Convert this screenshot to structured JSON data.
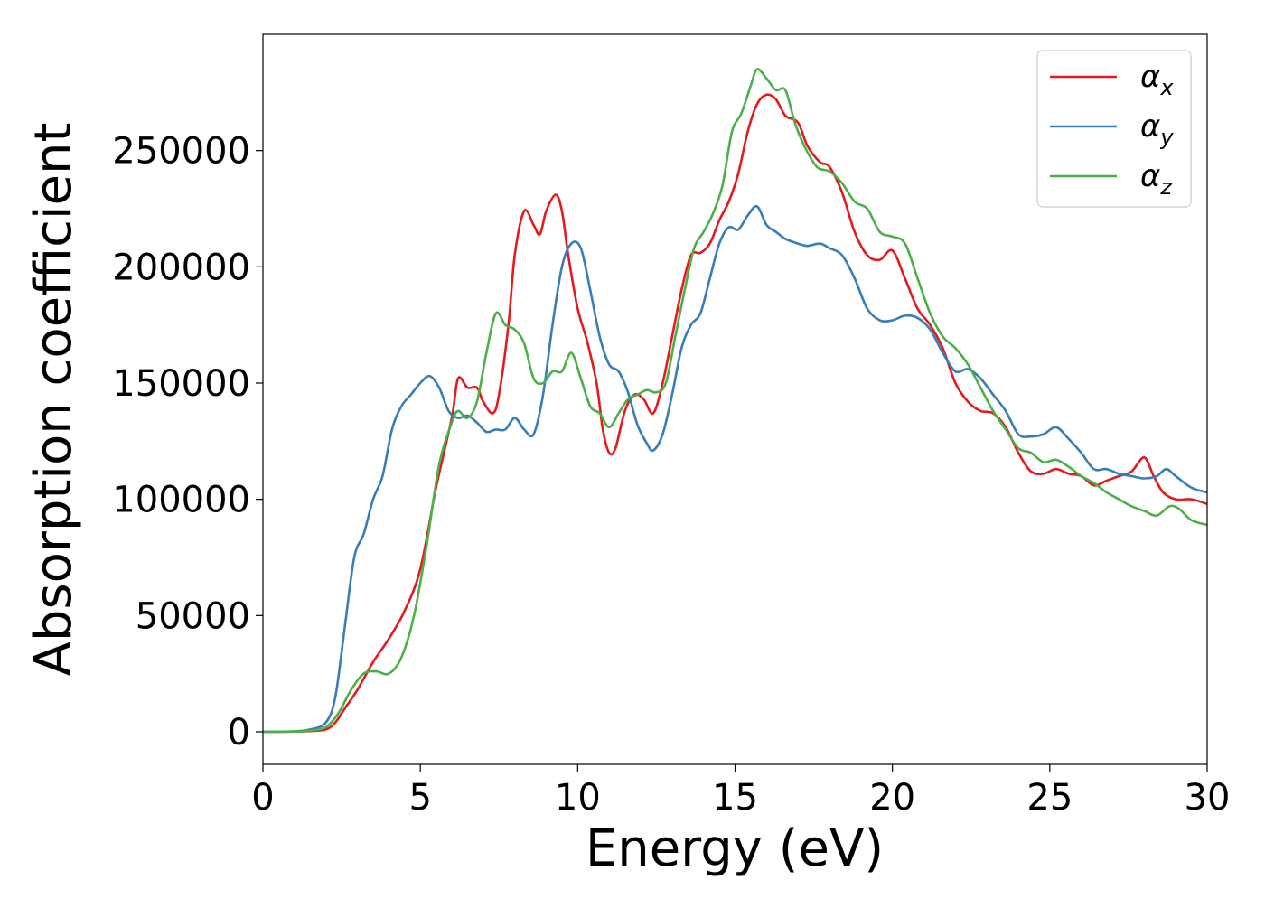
{
  "chart_data": {
    "type": "line",
    "title": "",
    "xlabel": "Energy (eV)",
    "ylabel": "Absorption coefficient",
    "xlim": [
      0,
      30
    ],
    "ylim": [
      -14000,
      300000
    ],
    "xticks": [
      0,
      5,
      10,
      15,
      20,
      25,
      30
    ],
    "yticks": [
      0,
      50000,
      100000,
      150000,
      200000,
      250000
    ],
    "grid": false,
    "legend_position": "top-right",
    "series": [
      {
        "name": "α_x",
        "label_base": "α",
        "label_sub": "x",
        "color": "#e41a1c",
        "points": [
          [
            0,
            0
          ],
          [
            1,
            100
          ],
          [
            1.5,
            300
          ],
          [
            2.0,
            1000
          ],
          [
            2.3,
            4000
          ],
          [
            2.6,
            10000
          ],
          [
            3.0,
            18000
          ],
          [
            3.5,
            30000
          ],
          [
            4.0,
            40000
          ],
          [
            4.5,
            52000
          ],
          [
            5.0,
            70000
          ],
          [
            5.5,
            105000
          ],
          [
            6.0,
            135000
          ],
          [
            6.2,
            152000
          ],
          [
            6.5,
            148000
          ],
          [
            6.8,
            148000
          ],
          [
            7.0,
            142000
          ],
          [
            7.3,
            137000
          ],
          [
            7.5,
            145000
          ],
          [
            7.8,
            175000
          ],
          [
            8.0,
            205000
          ],
          [
            8.3,
            224000
          ],
          [
            8.6,
            218000
          ],
          [
            8.8,
            214000
          ],
          [
            9.0,
            224000
          ],
          [
            9.3,
            231000
          ],
          [
            9.5,
            224000
          ],
          [
            9.7,
            205000
          ],
          [
            10.0,
            182000
          ],
          [
            10.3,
            168000
          ],
          [
            10.6,
            150000
          ],
          [
            10.8,
            130000
          ],
          [
            11.0,
            120000
          ],
          [
            11.2,
            122000
          ],
          [
            11.5,
            138000
          ],
          [
            11.8,
            145000
          ],
          [
            12.1,
            143000
          ],
          [
            12.4,
            137000
          ],
          [
            12.7,
            150000
          ],
          [
            13.0,
            170000
          ],
          [
            13.3,
            190000
          ],
          [
            13.6,
            205000
          ],
          [
            13.9,
            206000
          ],
          [
            14.2,
            210000
          ],
          [
            14.5,
            220000
          ],
          [
            14.8,
            228000
          ],
          [
            15.1,
            240000
          ],
          [
            15.4,
            258000
          ],
          [
            15.7,
            270000
          ],
          [
            16.0,
            274000
          ],
          [
            16.3,
            272000
          ],
          [
            16.6,
            265000
          ],
          [
            17.0,
            262000
          ],
          [
            17.3,
            252000
          ],
          [
            17.7,
            245000
          ],
          [
            18.0,
            243000
          ],
          [
            18.4,
            232000
          ],
          [
            18.8,
            215000
          ],
          [
            19.2,
            205000
          ],
          [
            19.6,
            203000
          ],
          [
            20.0,
            207000
          ],
          [
            20.4,
            195000
          ],
          [
            20.8,
            182000
          ],
          [
            21.2,
            175000
          ],
          [
            21.6,
            165000
          ],
          [
            22.0,
            150000
          ],
          [
            22.4,
            142000
          ],
          [
            22.8,
            138000
          ],
          [
            23.2,
            137000
          ],
          [
            23.6,
            131000
          ],
          [
            24.0,
            120000
          ],
          [
            24.4,
            112000
          ],
          [
            24.8,
            111000
          ],
          [
            25.2,
            113000
          ],
          [
            25.6,
            111000
          ],
          [
            26.0,
            110000
          ],
          [
            26.4,
            106000
          ],
          [
            26.8,
            108000
          ],
          [
            27.2,
            110000
          ],
          [
            27.6,
            112000
          ],
          [
            28.0,
            118000
          ],
          [
            28.3,
            110000
          ],
          [
            28.6,
            103000
          ],
          [
            29.0,
            100000
          ],
          [
            29.5,
            100000
          ],
          [
            30.0,
            98000
          ]
        ]
      },
      {
        "name": "α_y",
        "label_base": "α",
        "label_sub": "y",
        "color": "#377eb8",
        "points": [
          [
            0,
            0
          ],
          [
            1,
            200
          ],
          [
            1.5,
            1000
          ],
          [
            2.0,
            4000
          ],
          [
            2.3,
            15000
          ],
          [
            2.6,
            45000
          ],
          [
            2.9,
            75000
          ],
          [
            3.2,
            85000
          ],
          [
            3.5,
            100000
          ],
          [
            3.8,
            110000
          ],
          [
            4.1,
            130000
          ],
          [
            4.4,
            140000
          ],
          [
            4.7,
            145000
          ],
          [
            5.0,
            150000
          ],
          [
            5.3,
            153000
          ],
          [
            5.6,
            148000
          ],
          [
            5.9,
            138000
          ],
          [
            6.2,
            135000
          ],
          [
            6.5,
            136000
          ],
          [
            6.8,
            133000
          ],
          [
            7.1,
            129000
          ],
          [
            7.4,
            130000
          ],
          [
            7.7,
            130000
          ],
          [
            8.0,
            135000
          ],
          [
            8.3,
            130000
          ],
          [
            8.6,
            128000
          ],
          [
            8.9,
            145000
          ],
          [
            9.2,
            175000
          ],
          [
            9.5,
            200000
          ],
          [
            9.8,
            210000
          ],
          [
            10.1,
            208000
          ],
          [
            10.4,
            190000
          ],
          [
            10.7,
            170000
          ],
          [
            11.0,
            158000
          ],
          [
            11.3,
            155000
          ],
          [
            11.6,
            146000
          ],
          [
            11.9,
            132000
          ],
          [
            12.2,
            124000
          ],
          [
            12.4,
            121000
          ],
          [
            12.7,
            128000
          ],
          [
            13.0,
            145000
          ],
          [
            13.3,
            165000
          ],
          [
            13.6,
            175000
          ],
          [
            13.9,
            180000
          ],
          [
            14.2,
            195000
          ],
          [
            14.5,
            210000
          ],
          [
            14.8,
            217000
          ],
          [
            15.1,
            216000
          ],
          [
            15.4,
            222000
          ],
          [
            15.7,
            226000
          ],
          [
            16.0,
            218000
          ],
          [
            16.3,
            215000
          ],
          [
            16.6,
            212000
          ],
          [
            17.0,
            210000
          ],
          [
            17.3,
            209000
          ],
          [
            17.7,
            210000
          ],
          [
            18.0,
            208000
          ],
          [
            18.4,
            205000
          ],
          [
            18.8,
            195000
          ],
          [
            19.2,
            182000
          ],
          [
            19.6,
            177000
          ],
          [
            20.0,
            177000
          ],
          [
            20.4,
            179000
          ],
          [
            20.8,
            178000
          ],
          [
            21.2,
            173000
          ],
          [
            21.6,
            163000
          ],
          [
            22.0,
            155000
          ],
          [
            22.4,
            156000
          ],
          [
            22.8,
            152000
          ],
          [
            23.2,
            145000
          ],
          [
            23.6,
            138000
          ],
          [
            24.0,
            128000
          ],
          [
            24.4,
            127000
          ],
          [
            24.8,
            128000
          ],
          [
            25.2,
            131000
          ],
          [
            25.6,
            126000
          ],
          [
            26.0,
            120000
          ],
          [
            26.4,
            113000
          ],
          [
            26.8,
            113000
          ],
          [
            27.2,
            111000
          ],
          [
            27.6,
            110000
          ],
          [
            28.0,
            109000
          ],
          [
            28.4,
            110000
          ],
          [
            28.7,
            113000
          ],
          [
            29.0,
            110000
          ],
          [
            29.5,
            105000
          ],
          [
            30.0,
            103000
          ]
        ]
      },
      {
        "name": "α_z",
        "label_base": "α",
        "label_sub": "z",
        "color": "#4daf4a",
        "points": [
          [
            0,
            0
          ],
          [
            1,
            100
          ],
          [
            1.5,
            500
          ],
          [
            2.0,
            2000
          ],
          [
            2.4,
            8000
          ],
          [
            2.8,
            18000
          ],
          [
            3.2,
            25000
          ],
          [
            3.6,
            26000
          ],
          [
            4.0,
            25000
          ],
          [
            4.4,
            32000
          ],
          [
            4.8,
            50000
          ],
          [
            5.2,
            80000
          ],
          [
            5.6,
            115000
          ],
          [
            6.0,
            133000
          ],
          [
            6.2,
            138000
          ],
          [
            6.5,
            135000
          ],
          [
            6.8,
            142000
          ],
          [
            7.1,
            163000
          ],
          [
            7.4,
            180000
          ],
          [
            7.7,
            175000
          ],
          [
            8.0,
            173000
          ],
          [
            8.3,
            167000
          ],
          [
            8.6,
            152000
          ],
          [
            8.9,
            150000
          ],
          [
            9.2,
            155000
          ],
          [
            9.5,
            155000
          ],
          [
            9.8,
            163000
          ],
          [
            10.1,
            152000
          ],
          [
            10.4,
            140000
          ],
          [
            10.7,
            137000
          ],
          [
            11.0,
            131000
          ],
          [
            11.3,
            137000
          ],
          [
            11.6,
            143000
          ],
          [
            11.9,
            145000
          ],
          [
            12.2,
            147000
          ],
          [
            12.5,
            146000
          ],
          [
            12.8,
            150000
          ],
          [
            13.1,
            170000
          ],
          [
            13.4,
            190000
          ],
          [
            13.7,
            208000
          ],
          [
            14.0,
            215000
          ],
          [
            14.3,
            223000
          ],
          [
            14.6,
            235000
          ],
          [
            14.9,
            258000
          ],
          [
            15.2,
            266000
          ],
          [
            15.5,
            278000
          ],
          [
            15.7,
            285000
          ],
          [
            16.0,
            281000
          ],
          [
            16.3,
            276000
          ],
          [
            16.6,
            276000
          ],
          [
            16.9,
            262000
          ],
          [
            17.2,
            252000
          ],
          [
            17.6,
            243000
          ],
          [
            18.0,
            241000
          ],
          [
            18.4,
            236000
          ],
          [
            18.8,
            228000
          ],
          [
            19.2,
            225000
          ],
          [
            19.6,
            215000
          ],
          [
            20.0,
            213000
          ],
          [
            20.4,
            210000
          ],
          [
            20.8,
            195000
          ],
          [
            21.2,
            180000
          ],
          [
            21.6,
            170000
          ],
          [
            22.0,
            165000
          ],
          [
            22.4,
            158000
          ],
          [
            22.8,
            148000
          ],
          [
            23.2,
            138000
          ],
          [
            23.6,
            130000
          ],
          [
            24.0,
            122000
          ],
          [
            24.4,
            120000
          ],
          [
            24.8,
            116000
          ],
          [
            25.2,
            117000
          ],
          [
            25.6,
            114000
          ],
          [
            26.0,
            110000
          ],
          [
            26.4,
            107000
          ],
          [
            26.8,
            103000
          ],
          [
            27.2,
            100000
          ],
          [
            27.6,
            97000
          ],
          [
            28.0,
            95000
          ],
          [
            28.4,
            93000
          ],
          [
            28.8,
            97000
          ],
          [
            29.1,
            96000
          ],
          [
            29.5,
            91000
          ],
          [
            30.0,
            89000
          ]
        ]
      }
    ]
  }
}
